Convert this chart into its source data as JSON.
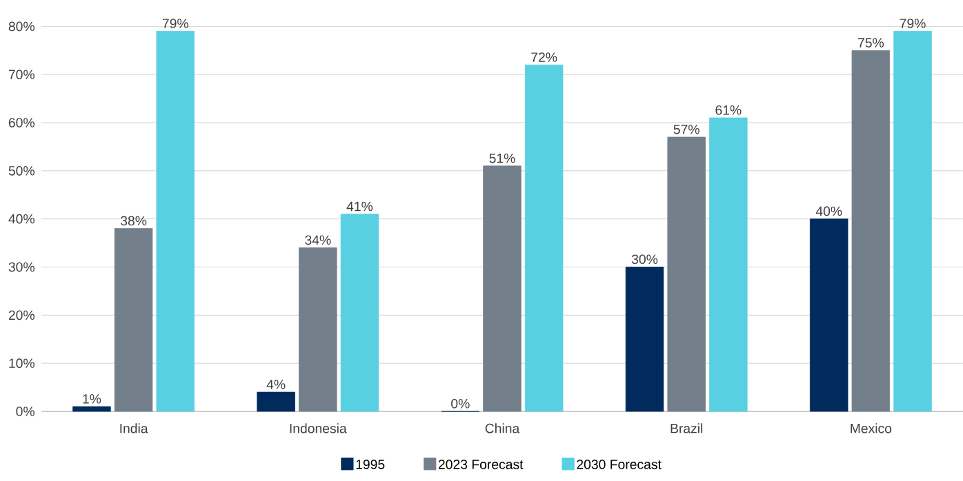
{
  "chart_data": {
    "type": "bar",
    "categories": [
      "India",
      "Indonesia",
      "China",
      "Brazil",
      "Mexico"
    ],
    "series": [
      {
        "name": "1995",
        "color": "#002b5c",
        "values": [
          1,
          4,
          0,
          30,
          40
        ],
        "value_labels": [
          "1%",
          "4%",
          "0%",
          "30%",
          "40%"
        ]
      },
      {
        "name": "2023 Forecast",
        "color": "#737f8a",
        "values": [
          38,
          34,
          51,
          57,
          75
        ],
        "value_labels": [
          "38%",
          "34%",
          "51%",
          "57%",
          "75%"
        ]
      },
      {
        "name": "2030 Forecast",
        "color": "#59d0e2",
        "values": [
          79,
          41,
          72,
          61,
          79
        ],
        "value_labels": [
          "79%",
          "41%",
          "72%",
          "61%",
          "79%"
        ]
      }
    ],
    "ylim": [
      0,
      80
    ],
    "yticks": [
      {
        "value": 0,
        "label": "0%"
      },
      {
        "value": 10,
        "label": "10%"
      },
      {
        "value": 20,
        "label": "20%"
      },
      {
        "value": 30,
        "label": "30%"
      },
      {
        "value": 40,
        "label": "40%"
      },
      {
        "value": 50,
        "label": "50%"
      },
      {
        "value": 60,
        "label": "60%"
      },
      {
        "value": 70,
        "label": "70%"
      },
      {
        "value": 80,
        "label": "80%"
      }
    ],
    "grid": "y",
    "legend": "bottom"
  }
}
